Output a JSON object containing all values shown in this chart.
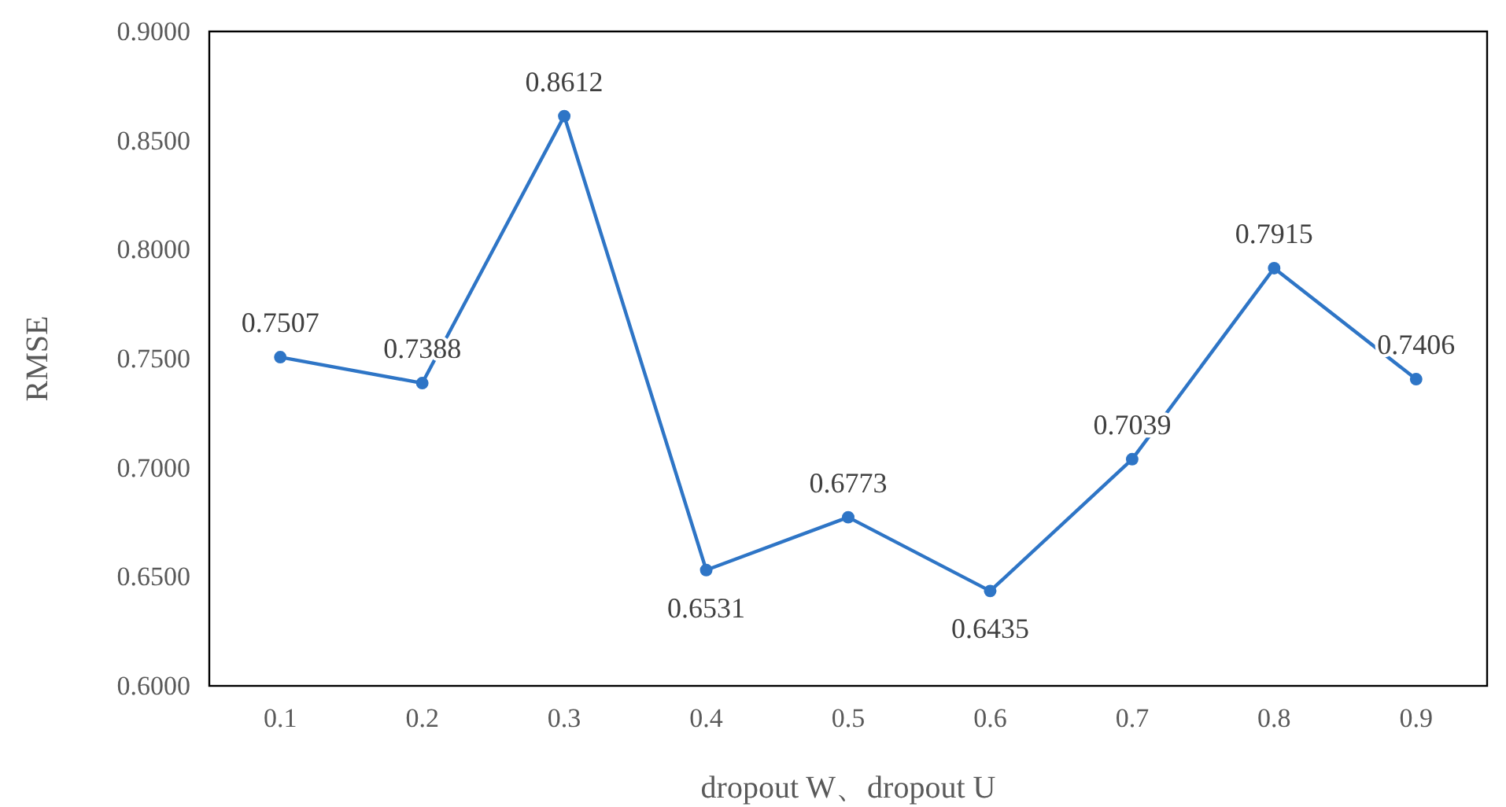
{
  "chart_data": {
    "type": "line",
    "xlabel": "dropout W、dropout U",
    "ylabel": "RMSE",
    "categories": [
      "0.1",
      "0.2",
      "0.3",
      "0.4",
      "0.5",
      "0.6",
      "0.7",
      "0.8",
      "0.9"
    ],
    "series": [
      {
        "color": "#2e75c6",
        "values": [
          0.7507,
          0.7388,
          0.8612,
          0.6531,
          0.6773,
          0.6435,
          0.7039,
          0.7915,
          0.7406
        ]
      }
    ],
    "ylim": [
      0.6,
      0.9
    ],
    "yticks": [
      {
        "value": 0.6,
        "label": "0.6000"
      },
      {
        "value": 0.65,
        "label": "0.6500"
      },
      {
        "value": 0.7,
        "label": "0.7000"
      },
      {
        "value": 0.75,
        "label": "0.7500"
      },
      {
        "value": 0.8,
        "label": "0.8000"
      },
      {
        "value": 0.85,
        "label": "0.8500"
      },
      {
        "value": 0.9,
        "label": "0.9000"
      }
    ],
    "grid": false,
    "marker": "circle",
    "line_style": "solid",
    "data_labels": true
  }
}
